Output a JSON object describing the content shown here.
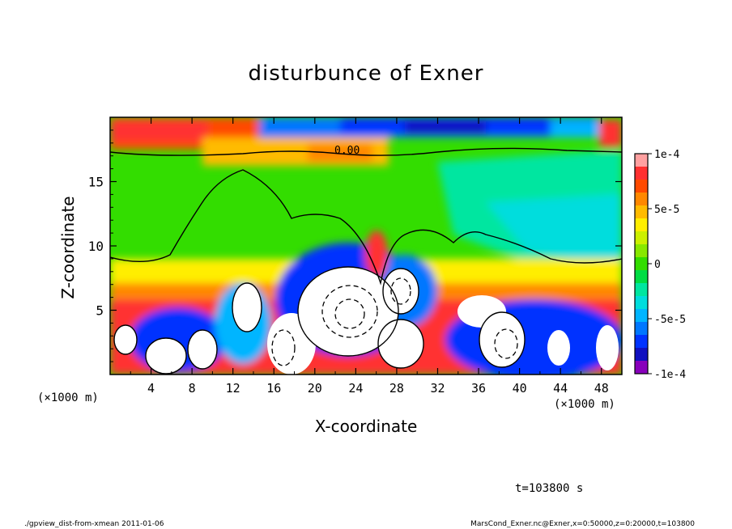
{
  "chart_data": {
    "type": "heatmap",
    "title": "disturbunce of Exner",
    "xlabel": "X-coordinate",
    "ylabel": "Z-coordinate",
    "x_unit": "(×1000 m)",
    "xlim": [
      0,
      50
    ],
    "ylim": [
      0,
      20
    ],
    "x_ticks": [
      "4",
      "8",
      "12",
      "16",
      "20",
      "24",
      "28",
      "32",
      "36",
      "40",
      "44",
      "48"
    ],
    "y_ticks": [
      "5",
      "10",
      "15"
    ],
    "colorbar": {
      "range": [
        -0.0001,
        0.0001
      ],
      "tick_labels": [
        "1e-4",
        "5e-5",
        "0",
        "-5e-5",
        "-1e-4"
      ],
      "colors": [
        "#ffa0a0",
        "#ff3030",
        "#ff4a00",
        "#ff8800",
        "#ffbb00",
        "#ffee00",
        "#ccf000",
        "#88e800",
        "#33dd00",
        "#00dd44",
        "#00e6a0",
        "#00dddd",
        "#00b5ff",
        "#0077ff",
        "#0033ff",
        "#1010c0",
        "#8800bb"
      ]
    },
    "contour_labels": [
      "0.00"
    ],
    "notes": {
      "time": "t=103800 s",
      "footer_left": "./gpview_dist-from-xmean  2011-01-06",
      "footer_right": "MarsCond_Exner.nc@Exner,x=0:50000,z=0:20000,t=103800"
    }
  }
}
